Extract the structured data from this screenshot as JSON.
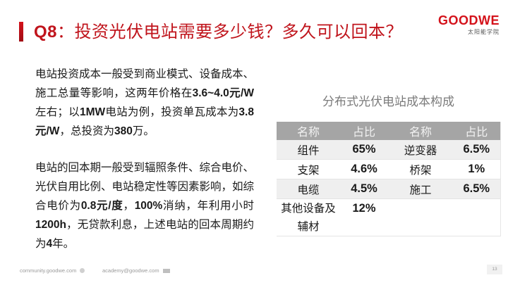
{
  "header": {
    "question_number": "Q8",
    "title_text": "：投资光伏电站需要多少钱？多久可以回本？",
    "accent_color": "#c0141c"
  },
  "logo": {
    "brand": "GOODWE",
    "subtitle": "太阳能学院"
  },
  "content": {
    "paragraph1": {
      "parts": [
        "电站投资成本一般受到商业模式、设备成本、施工总量等影响，这两年价格在",
        "3.6~4.0元/W",
        "左右；以",
        "1MW",
        "电站为例，投资单瓦成本为",
        "3.8元/W",
        "，总投资为",
        "380",
        "万。"
      ]
    },
    "paragraph2": {
      "parts": [
        "电站的回本期一般受到辐照条件、综合电价、光伏自用比例、电站稳定性等因素影响，如综合电价为",
        "0.8元/度",
        "，",
        "100%",
        "消纳，年利用小时 ",
        "1200h",
        "，无贷款利息，上述电站的回本周期约为",
        "4",
        "年。"
      ]
    }
  },
  "table": {
    "title": "分布式光伏电站成本构成",
    "headers": [
      "名称",
      "占比",
      "名称",
      "占比"
    ],
    "header_color": "#a5a5a5",
    "rows": [
      [
        "组件",
        "65%",
        "逆变器",
        "6.5%"
      ],
      [
        "支架",
        "4.6%",
        "桥架",
        "1%"
      ],
      [
        "电缆",
        "4.5%",
        "施工",
        "6.5%"
      ],
      [
        "其他设备及辅材",
        "12%",
        "",
        ""
      ]
    ]
  },
  "footer": {
    "website": "community.goodwe.com",
    "email": "academy@goodwe.com",
    "page_number": "13"
  }
}
